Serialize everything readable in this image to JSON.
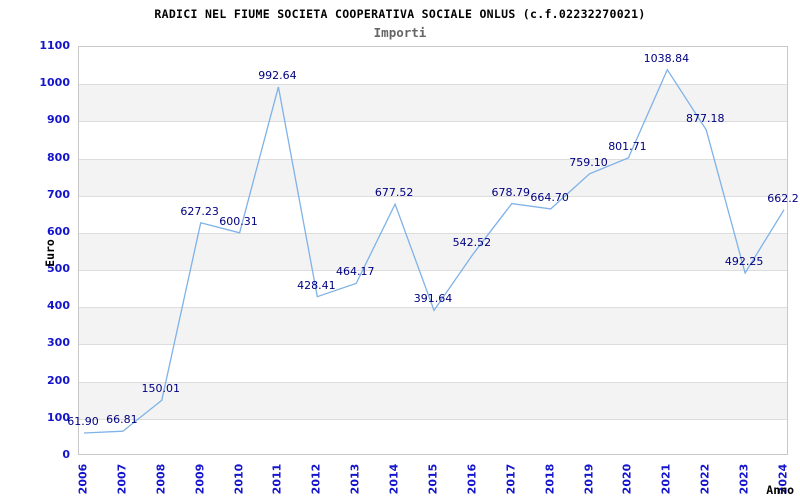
{
  "title": "RADICI NEL FIUME SOCIETA COOPERATIVA SOCIALE ONLUS (c.f.02232270021)",
  "subtitle": "Importi",
  "chart_data": {
    "type": "line",
    "title": "RADICI NEL FIUME SOCIETA COOPERATIVA SOCIALE ONLUS (c.f.02232270021)",
    "subtitle": "Importi",
    "xlabel": "Anno",
    "ylabel": "Euro",
    "categories": [
      "2006",
      "2007",
      "2008",
      "2009",
      "2010",
      "2011",
      "2012",
      "2013",
      "2014",
      "2015",
      "2016",
      "2017",
      "2018",
      "2019",
      "2020",
      "2021",
      "2022",
      "2023",
      "2024"
    ],
    "series": [
      {
        "name": "Importi",
        "values": [
          61.9,
          66.81,
          150.01,
          627.23,
          600.31,
          992.64,
          428.41,
          464.17,
          677.52,
          391.64,
          542.52,
          678.79,
          664.7,
          759.1,
          801.71,
          1038.84,
          877.18,
          492.25,
          662.2
        ]
      }
    ],
    "point_labels": [
      "61.90",
      "66.81",
      "150.01",
      "627.23",
      "600.31",
      "992.64",
      "428.41",
      "464.17",
      "677.52",
      "391.64",
      "542.52",
      "678.79",
      "664.70",
      "759.10",
      "801.71",
      "1038.84",
      "877.18",
      "492.25",
      "662.2"
    ],
    "ylim": [
      0,
      1100
    ],
    "ytick_step": 100,
    "yticks": [
      "0",
      "100",
      "200",
      "300",
      "400",
      "500",
      "600",
      "700",
      "800",
      "900",
      "1000",
      "1100"
    ],
    "grid": "horizontal-bands",
    "band_top_values": [
      1000,
      800,
      600,
      400,
      200
    ],
    "legend_position": "none",
    "colors": {
      "line": "#7fb2e8",
      "point_label": "#000080",
      "tick_label": "#1414cc",
      "band_fill": "#f3f3f3",
      "gridline": "#dddddd",
      "plot_border": "#c9c9c9",
      "title_text": "#000000",
      "subtitle_text": "#666666",
      "background": "#ffffff"
    }
  }
}
